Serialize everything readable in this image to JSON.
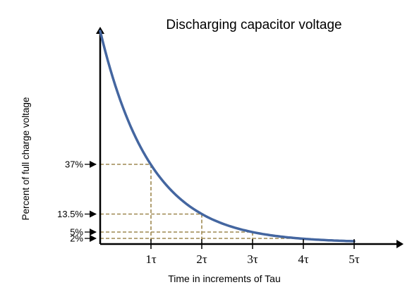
{
  "chart_data": {
    "type": "line",
    "title": "Discharging capacitor voltage",
    "xlabel": "Time in increments of Tau",
    "ylabel": "Percent  of full charge voltage",
    "x_tick_labels": [
      "1τ",
      "2τ",
      "3τ",
      "4τ",
      "5τ"
    ],
    "x_tick_values": [
      1,
      2,
      3,
      4,
      5
    ],
    "y_tick_labels": [
      "37%",
      "13.5%",
      "5%",
      "2%"
    ],
    "y_tick_values": [
      37,
      13.5,
      5,
      2
    ],
    "xlim": [
      0,
      6
    ],
    "ylim": [
      0,
      100
    ],
    "series": [
      {
        "x": [
          0,
          0.25,
          0.5,
          0.75,
          1,
          1.25,
          1.5,
          1.75,
          2,
          2.5,
          3,
          3.5,
          4,
          4.5,
          5
        ],
        "values": [
          100,
          77.9,
          60.7,
          47.2,
          36.8,
          28.7,
          22.3,
          17.4,
          13.5,
          8.2,
          5.0,
          3.0,
          1.8,
          1.1,
          0.7
        ]
      }
    ],
    "reference_lines": [
      {
        "x": 1,
        "y": 37
      },
      {
        "x": 2,
        "y": 13.5
      },
      {
        "x": 3,
        "y": 5
      },
      {
        "x": 4,
        "y": 2
      }
    ],
    "grid": false,
    "colors": {
      "curve": "#4466a0",
      "guides": "#9e8850",
      "axes": "#000000"
    }
  }
}
